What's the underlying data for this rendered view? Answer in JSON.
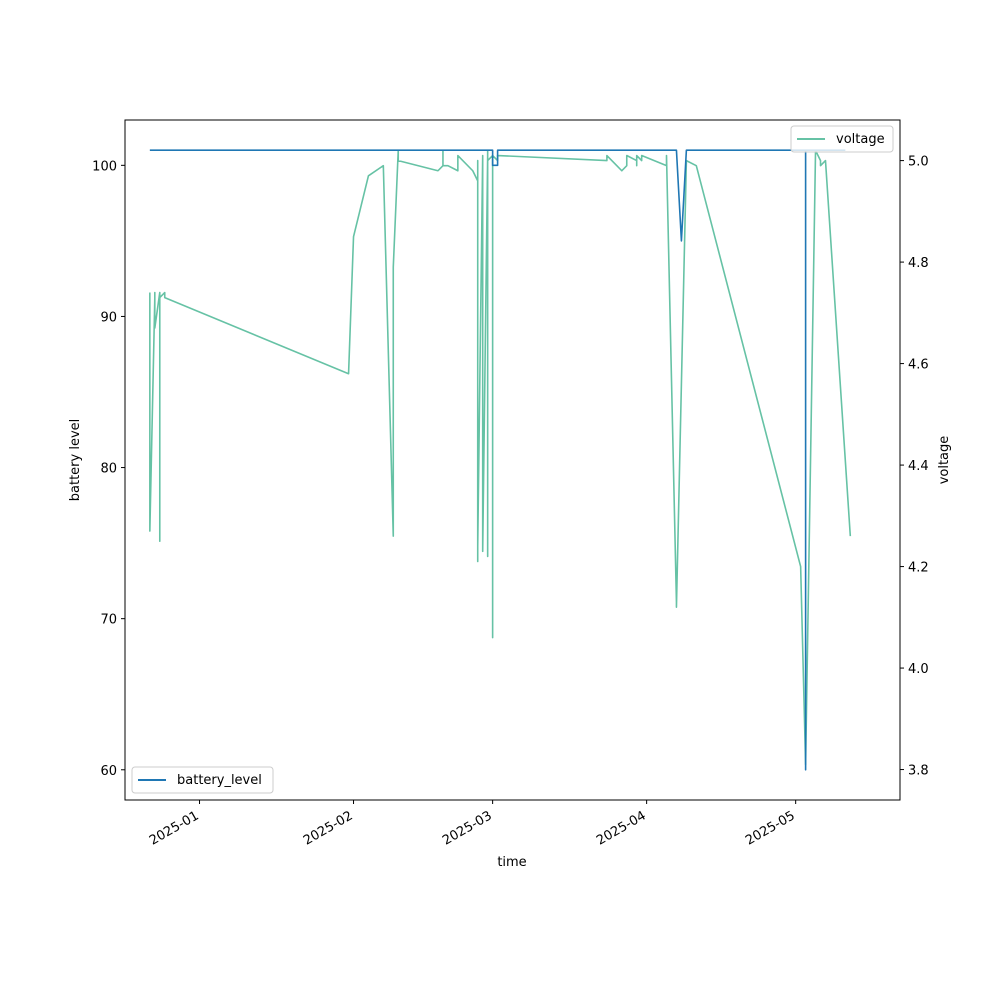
{
  "chart_data": {
    "type": "line",
    "xlabel": "time",
    "ylabel_left": "battery level",
    "ylabel_right": "voltage",
    "x_ticks": [
      "2025-01",
      "2025-02",
      "2025-03",
      "2025-04",
      "2025-05"
    ],
    "xlim": [
      "2024-12-17",
      "2025-05-22"
    ],
    "ylim_left": [
      58.0,
      103.0
    ],
    "yticks_left": [
      60,
      70,
      80,
      90,
      100
    ],
    "ylim_right": [
      3.74,
      5.08
    ],
    "yticks_right": [
      3.8,
      4.0,
      4.2,
      4.4,
      4.6,
      4.8,
      5.0
    ],
    "grid": false,
    "series": [
      {
        "name": "battery_level",
        "axis": "left",
        "color": "#1f77b4",
        "legend_position": "lower-left",
        "points": [
          [
            "2024-12-22",
            101
          ],
          [
            "2025-03-01",
            101
          ],
          [
            "2025-03-01",
            100
          ],
          [
            "2025-03-02",
            100
          ],
          [
            "2025-03-02",
            101
          ],
          [
            "2025-04-07",
            101
          ],
          [
            "2025-04-08",
            95
          ],
          [
            "2025-04-09",
            101
          ],
          [
            "2025-05-03",
            101
          ],
          [
            "2025-05-03",
            60
          ],
          [
            "2025-05-03",
            101
          ],
          [
            "2025-05-11",
            101
          ]
        ]
      },
      {
        "name": "voltage",
        "axis": "right",
        "color": "#66c2a5",
        "legend_position": "upper-right",
        "points": [
          [
            "2024-12-22",
            4.74
          ],
          [
            "2024-12-22",
            4.73
          ],
          [
            "2024-12-22",
            4.27
          ],
          [
            "2024-12-23",
            4.73
          ],
          [
            "2024-12-23",
            4.72
          ],
          [
            "2024-12-23",
            4.74
          ],
          [
            "2024-12-23",
            4.67
          ],
          [
            "2024-12-24",
            4.74
          ],
          [
            "2024-12-24",
            4.25
          ],
          [
            "2024-12-24",
            4.74
          ],
          [
            "2024-12-24",
            4.73
          ],
          [
            "2024-12-25",
            4.74
          ],
          [
            "2024-12-25",
            4.73
          ],
          [
            "2025-01-31",
            4.58
          ],
          [
            "2025-02-01",
            4.85
          ],
          [
            "2025-02-04",
            4.97
          ],
          [
            "2025-02-07",
            4.99
          ],
          [
            "2025-02-09",
            4.26
          ],
          [
            "2025-02-09",
            4.79
          ],
          [
            "2025-02-10",
            5.02
          ],
          [
            "2025-02-10",
            5.0
          ],
          [
            "2025-02-18",
            4.98
          ],
          [
            "2025-02-19",
            4.99
          ],
          [
            "2025-02-19",
            5.02
          ],
          [
            "2025-02-19",
            4.99
          ],
          [
            "2025-02-20",
            4.99
          ],
          [
            "2025-02-22",
            4.98
          ],
          [
            "2025-02-22",
            5.0
          ],
          [
            "2025-02-22",
            5.01
          ],
          [
            "2025-02-25",
            4.98
          ],
          [
            "2025-02-26",
            4.96
          ],
          [
            "2025-02-26",
            4.21
          ],
          [
            "2025-02-26",
            5.0
          ],
          [
            "2025-02-26",
            4.24
          ],
          [
            "2025-02-27",
            5.01
          ],
          [
            "2025-02-27",
            4.25
          ],
          [
            "2025-02-27",
            5.0
          ],
          [
            "2025-02-27",
            4.23
          ],
          [
            "2025-02-28",
            5.01
          ],
          [
            "2025-02-28",
            4.22
          ],
          [
            "2025-02-28",
            5.01
          ],
          [
            "2025-02-28",
            5.02
          ],
          [
            "2025-02-28",
            5.0
          ],
          [
            "2025-03-01",
            5.01
          ],
          [
            "2025-03-01",
            4.97
          ],
          [
            "2025-03-01",
            4.06
          ],
          [
            "2025-03-01",
            5.01
          ],
          [
            "2025-03-02",
            5.0
          ],
          [
            "2025-03-02",
            5.0
          ],
          [
            "2025-03-02",
            5.01
          ],
          [
            "2025-03-24",
            5.0
          ],
          [
            "2025-03-24",
            5.01
          ],
          [
            "2025-03-26",
            4.99
          ],
          [
            "2025-03-27",
            4.98
          ],
          [
            "2025-03-28",
            4.99
          ],
          [
            "2025-03-28",
            5.01
          ],
          [
            "2025-03-30",
            5.0
          ],
          [
            "2025-03-30",
            5.0
          ],
          [
            "2025-03-30",
            4.99
          ],
          [
            "2025-03-30",
            5.01
          ],
          [
            "2025-03-31",
            5.0
          ],
          [
            "2025-03-31",
            5.01
          ],
          [
            "2025-04-05",
            4.99
          ],
          [
            "2025-04-05",
            5.01
          ],
          [
            "2025-04-07",
            4.13
          ],
          [
            "2025-04-07",
            4.12
          ],
          [
            "2025-04-09",
            5.0
          ],
          [
            "2025-04-11",
            4.99
          ],
          [
            "2025-05-02",
            4.2
          ],
          [
            "2025-05-03",
            3.81
          ],
          [
            "2025-05-05",
            5.02
          ],
          [
            "2025-05-06",
            5.0
          ],
          [
            "2025-05-06",
            5.0
          ],
          [
            "2025-05-06",
            4.99
          ],
          [
            "2025-05-07",
            5.0
          ],
          [
            "2025-05-12",
            4.26
          ]
        ]
      }
    ]
  }
}
